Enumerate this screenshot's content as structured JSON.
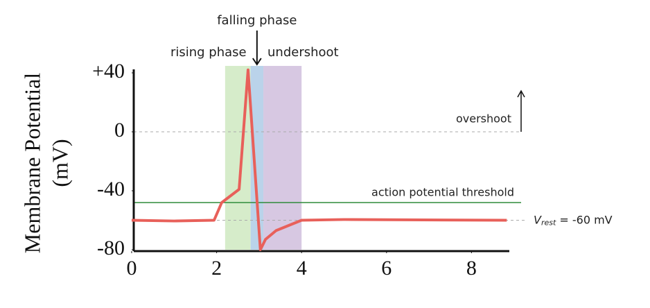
{
  "chart_data": {
    "type": "line",
    "y_label_lines": [
      "Membrane Potential",
      "(mV)"
    ],
    "x": [
      0,
      1,
      1.94,
      2.12,
      2.53,
      2.74,
      3.03,
      3.15,
      3.4,
      4.0,
      5,
      8.83
    ],
    "values": [
      -60,
      -60.5,
      -60,
      -48,
      -39,
      42,
      -80,
      -73,
      -67,
      -60,
      -59.5,
      -60
    ],
    "color": "#e8605a",
    "xlim": [
      0,
      8.9
    ],
    "ylim": [
      -80,
      40
    ],
    "xticks": [
      0,
      2,
      4,
      6,
      8
    ],
    "yticks": [
      {
        "value": 40,
        "label": "+40"
      },
      0,
      -40,
      -80
    ],
    "regions": [
      {
        "label": "rising phase",
        "x": [
          2.2,
          2.8
        ],
        "color": "#d6ecca"
      },
      {
        "label": "falling phase",
        "x": [
          2.8,
          3.1
        ],
        "color": "#bad3ea"
      },
      {
        "label": "undershoot",
        "x": [
          3.1,
          4.0
        ],
        "color": "#d7c8e2"
      }
    ],
    "hlines": [
      {
        "value": 0,
        "label": "overshoot",
        "color": "#aaaaaa",
        "dashed": true
      },
      {
        "value": -48,
        "label": "action potential threshold",
        "color": "#2e8b3a",
        "dashed": false
      },
      {
        "value": -60,
        "label": "V",
        "subscript": "rest",
        "suffix": " = -60 mV",
        "color": "#aaaaaa",
        "dashed": true
      }
    ]
  }
}
